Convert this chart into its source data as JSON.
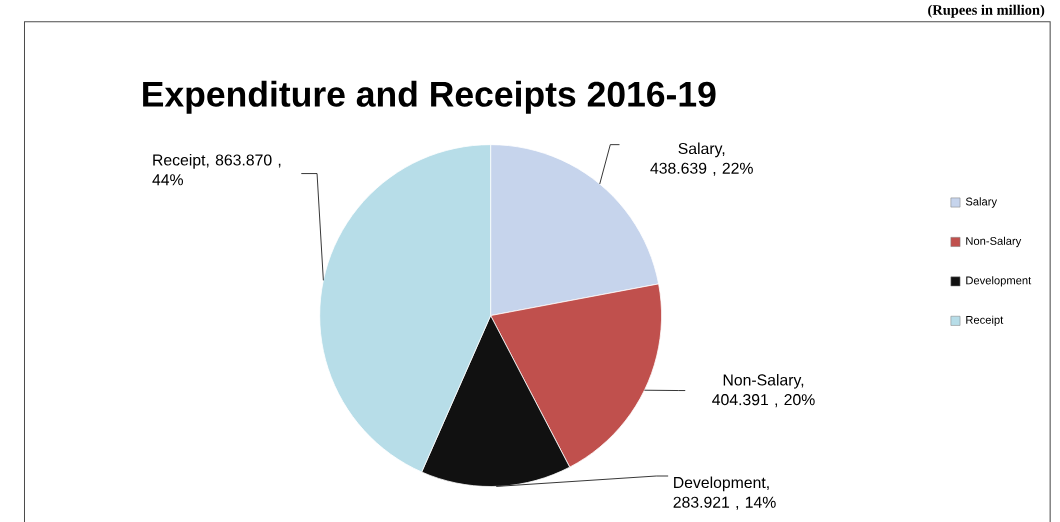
{
  "chart_data": {
    "type": "pie",
    "title": "Expenditure and Receipts 2016-19",
    "categories": [
      "Salary",
      "Non-Salary",
      "Development",
      "Receipt"
    ],
    "values": [
      438.639,
      404.391,
      283.921,
      863.87
    ],
    "colors": [
      "#c6d4ec",
      "#c0504d",
      "#111111",
      "#b7dde8"
    ],
    "value_labels": [
      "Salary,  438.639 , 22%",
      "Non-Salary, 404.391 , 20%",
      "Development, 283.921 , 14%",
      "Receipt,  863.870 , 44%"
    ],
    "legend": "right",
    "annotations": [
      "(Rupees in million)"
    ]
  }
}
